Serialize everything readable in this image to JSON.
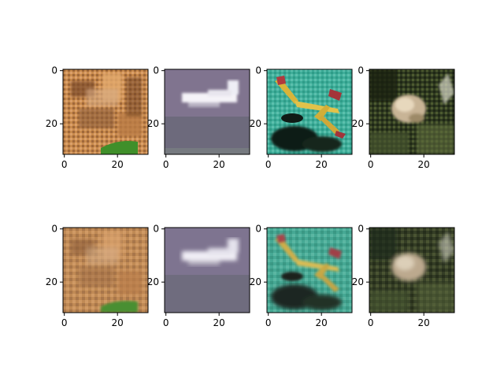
{
  "figure": {
    "rows": 2,
    "columns": 4,
    "row_descriptions": [
      "original images",
      "reconstructed images"
    ],
    "axis_ticks": {
      "x": [
        "0",
        "20"
      ],
      "y": [
        "0",
        "20"
      ]
    },
    "panels": [
      {
        "id": "r1c1",
        "content": "blurry close-up of orange and brown fur/bark texture with green patch at bottom"
      },
      {
        "id": "r1c2",
        "content": "white airplane against purple-gray sky"
      },
      {
        "id": "r1c3",
        "content": "yellow and red seaplane over teal water with dark shadow"
      },
      {
        "id": "r1c4",
        "content": "frog among dark green foliage"
      },
      {
        "id": "r2c1",
        "content": "blurrier reconstruction of the orange and brown texture"
      },
      {
        "id": "r2c2",
        "content": "blurrier reconstruction of the white airplane"
      },
      {
        "id": "r2c3",
        "content": "blurrier reconstruction of the yellow seaplane"
      },
      {
        "id": "r2c4",
        "content": "blurrier reconstruction of the frog"
      }
    ]
  }
}
